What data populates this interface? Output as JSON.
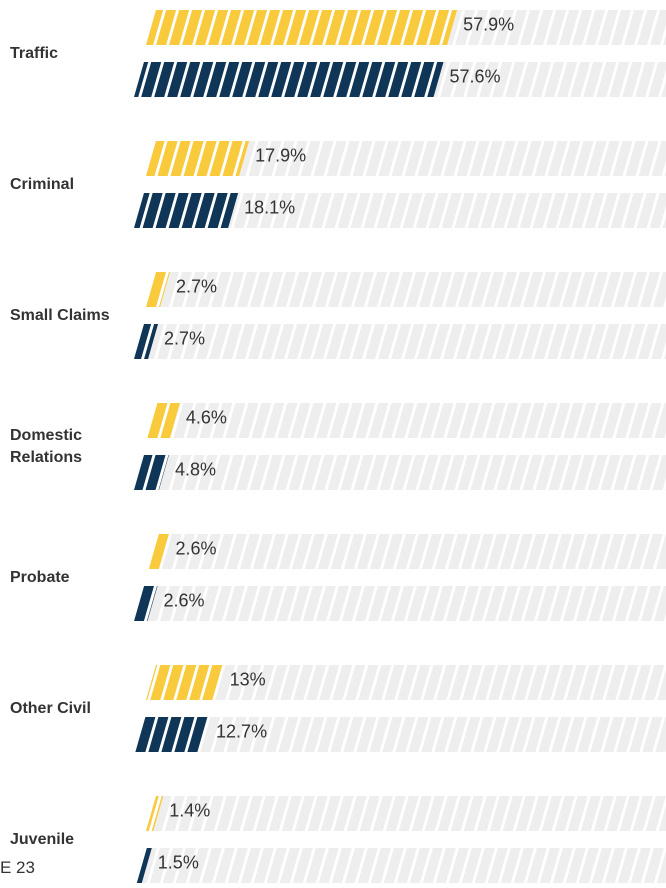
{
  "chart_data": {
    "type": "bar",
    "orientation": "horizontal",
    "categories": [
      "Traffic",
      "Criminal",
      "Small Claims",
      "Domestic Relations",
      "Probate",
      "Other Civil",
      "Juvenile"
    ],
    "series": [
      {
        "color": "#f9cb3c",
        "values": [
          57.9,
          17.9,
          2.7,
          4.6,
          2.6,
          13,
          1.4
        ],
        "value_labels": [
          "57.9%",
          "17.9%",
          "2.7%",
          "4.6%",
          "2.6%",
          "13%",
          "1.4%"
        ]
      },
      {
        "color": "#0f3557",
        "values": [
          57.6,
          18.1,
          2.7,
          4.8,
          2.6,
          12.7,
          1.5
        ],
        "value_labels": [
          "57.6%",
          "18.1%",
          "2.7%",
          "4.8%",
          "2.6%",
          "12.7%",
          "1.5%"
        ]
      }
    ],
    "xlim": [
      0,
      100
    ],
    "track_color": "#eeeeee",
    "footer_text": "E 23"
  }
}
